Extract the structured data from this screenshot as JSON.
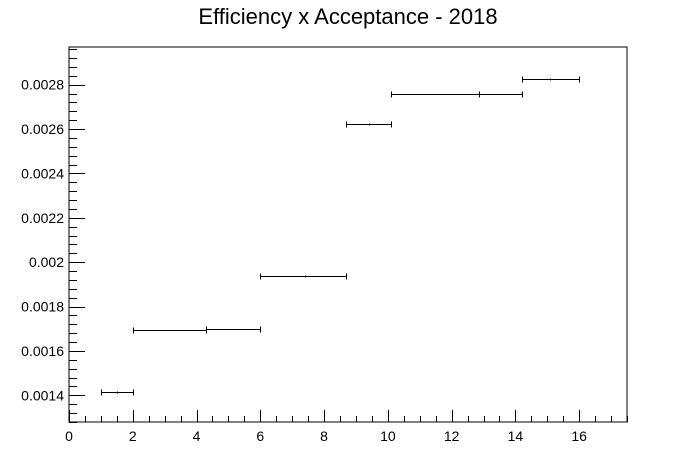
{
  "chart_data": {
    "type": "scatter",
    "title": "Efficiency x Acceptance - 2018",
    "xlabel": "",
    "ylabel": "",
    "xlim": [
      0,
      17.5
    ],
    "ylim": [
      0.00128,
      0.00297
    ],
    "x_ticks": [
      0,
      2,
      4,
      6,
      8,
      10,
      12,
      14,
      16
    ],
    "x_tick_labels": [
      "0",
      "2",
      "4",
      "6",
      "8",
      "10",
      "12",
      "14",
      "16"
    ],
    "y_ticks": [
      0.0014,
      0.0016,
      0.0018,
      0.002,
      0.0022,
      0.0024,
      0.0026,
      0.0028
    ],
    "y_tick_labels": [
      "0.0014",
      "0.0016",
      "0.0018",
      "0.002",
      "0.0022",
      "0.0024",
      "0.0026",
      "0.0028"
    ],
    "grid": false,
    "marker_style": "horizontal error bars",
    "points": [
      {
        "x": 1.5,
        "xlow": 1.0,
        "xhigh": 2.0,
        "y": 0.001415
      },
      {
        "x": 4.3,
        "xlow": 2.0,
        "xhigh": 4.3,
        "y": 0.001695
      },
      {
        "x": 4.3,
        "xlow": 4.3,
        "xhigh": 6.0,
        "y": 0.001697
      },
      {
        "x": 7.4,
        "xlow": 6.0,
        "xhigh": 8.7,
        "y": 0.001938
      },
      {
        "x": 9.4,
        "xlow": 8.7,
        "xhigh": 10.1,
        "y": 0.002625
      },
      {
        "x": 12.85,
        "xlow": 10.1,
        "xhigh": 12.85,
        "y": 0.002757
      },
      {
        "x": 12.85,
        "xlow": 12.85,
        "xhigh": 14.2,
        "y": 0.002758
      },
      {
        "x": 15.1,
        "xlow": 14.2,
        "xhigh": 16.0,
        "y": 0.002828
      }
    ]
  }
}
